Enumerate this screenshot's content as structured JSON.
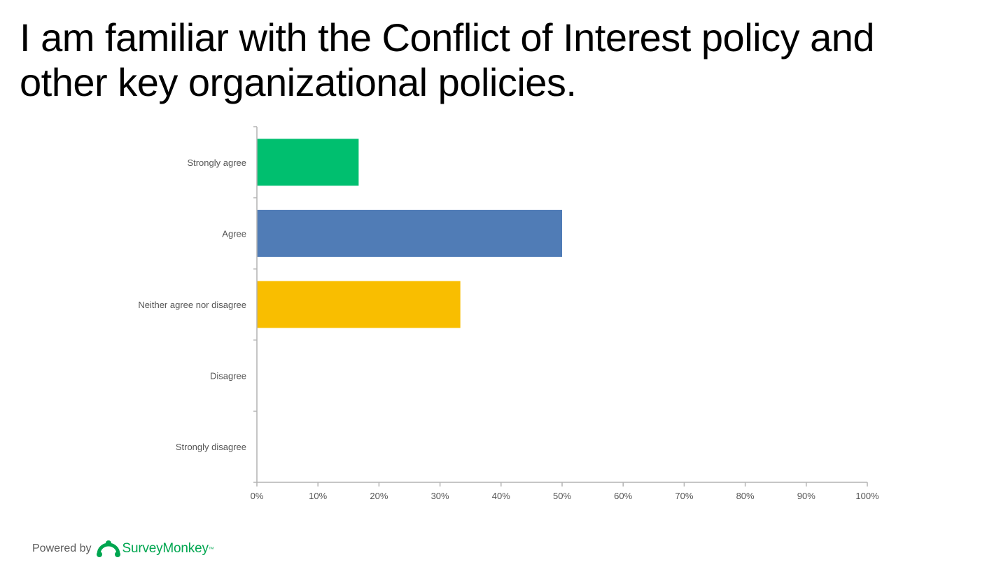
{
  "slide": {
    "title": "I am familiar with the Conflict of Interest policy and other key organizational policies."
  },
  "footer": {
    "powered_by": "Powered by",
    "brand": "SurveyMonkey",
    "brand_logo_icon": "surveymonkey-logo-icon",
    "brand_color": "#00a650"
  },
  "chart_data": {
    "type": "bar",
    "orientation": "horizontal",
    "title": "I am familiar with the Conflict of Interest policy and other key organizational policies.",
    "categories": [
      "Strongly agree",
      "Agree",
      "Neither agree nor disagree",
      "Disagree",
      "Strongly disagree"
    ],
    "values": [
      16.67,
      50,
      33.33,
      0,
      0
    ],
    "colors": [
      "#00bf6f",
      "#507cb6",
      "#f9be00",
      "#6bc8cd",
      "#8b9ad0"
    ],
    "xlim": [
      0,
      100
    ],
    "xticks": [
      0,
      10,
      20,
      30,
      40,
      50,
      60,
      70,
      80,
      90,
      100
    ],
    "xtick_labels": [
      "0%",
      "10%",
      "20%",
      "30%",
      "40%",
      "50%",
      "60%",
      "70%",
      "80%",
      "90%",
      "100%"
    ],
    "xlabel": "",
    "ylabel": "",
    "grid": false,
    "legend": "none"
  }
}
